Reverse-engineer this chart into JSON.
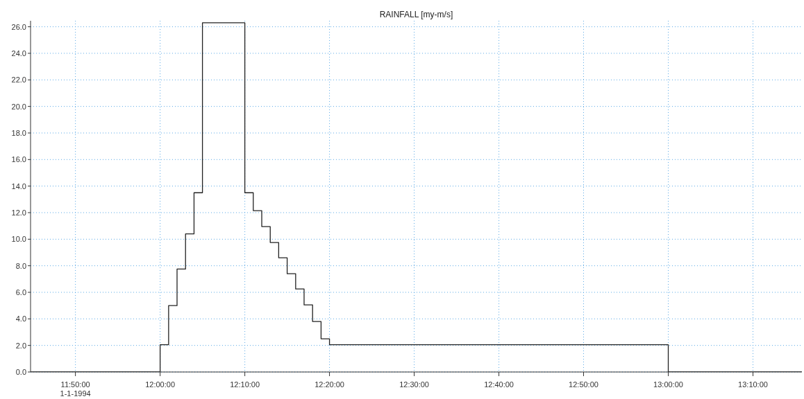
{
  "chart_data": {
    "type": "step",
    "title": "RAINFALL [my-m/s]",
    "x": [
      11.745,
      12.0,
      12.0167,
      12.0333,
      12.05,
      12.0667,
      12.0833,
      12.1667,
      12.1833,
      12.2,
      12.2167,
      12.2333,
      12.25,
      12.2667,
      12.2833,
      12.3,
      12.3167,
      12.3333,
      13.0,
      13.263
    ],
    "series": [
      {
        "color": "#222222",
        "values": [
          0,
          2.05,
          5.0,
          7.75,
          10.4,
          13.5,
          26.3,
          13.5,
          12.15,
          10.95,
          9.75,
          8.6,
          7.4,
          6.25,
          5.05,
          3.8,
          2.5,
          2.05,
          0,
          0
        ]
      }
    ],
    "xlim": [
      11.745,
      13.263
    ],
    "xticks": [
      {
        "value": 11.8333,
        "label": "11:50:00"
      },
      {
        "value": 12.0,
        "label": "12:00:00"
      },
      {
        "value": 12.1667,
        "label": "12:10:00"
      },
      {
        "value": 12.3333,
        "label": "12:20:00"
      },
      {
        "value": 12.5,
        "label": "12:30:00"
      },
      {
        "value": 12.6667,
        "label": "12:40:00"
      },
      {
        "value": 12.8333,
        "label": "12:50:00"
      },
      {
        "value": 13.0,
        "label": "13:00:00"
      },
      {
        "value": 13.1667,
        "label": "13:10:00"
      }
    ],
    "ylim": [
      0,
      26.45
    ],
    "yticks": [
      {
        "value": 0,
        "label": "0.0"
      },
      {
        "value": 2,
        "label": "2.0"
      },
      {
        "value": 4,
        "label": "4.0"
      },
      {
        "value": 6,
        "label": "6.0"
      },
      {
        "value": 8,
        "label": "8.0"
      },
      {
        "value": 10,
        "label": "10.0"
      },
      {
        "value": 12,
        "label": "12.0"
      },
      {
        "value": 14,
        "label": "14.0"
      },
      {
        "value": 16,
        "label": "16.0"
      },
      {
        "value": 18,
        "label": "18.0"
      },
      {
        "value": 20,
        "label": "20.0"
      },
      {
        "value": 22,
        "label": "22.0"
      },
      {
        "value": 24,
        "label": "24.0"
      },
      {
        "value": 26,
        "label": "26.0"
      }
    ],
    "annotations": [
      "1-1-1994"
    ],
    "grid": true,
    "legend": false,
    "marker": "none",
    "line_style": "solid"
  }
}
